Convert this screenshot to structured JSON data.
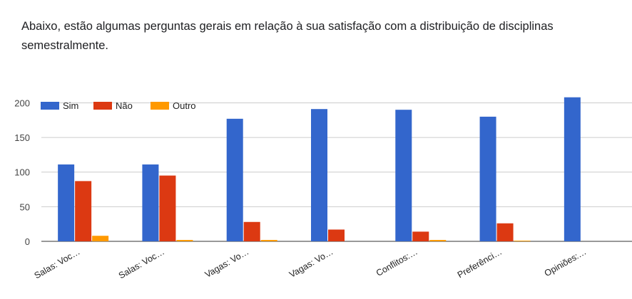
{
  "question": {
    "text": "Abaixo, estão algumas perguntas gerais em relação à sua satisfação com a distribuição de disciplinas semestralmente."
  },
  "chart_data": {
    "type": "bar",
    "title": "",
    "xlabel": "",
    "ylabel": "",
    "ylim": [
      0,
      220
    ],
    "yticks": [
      0,
      50,
      100,
      150,
      200
    ],
    "grid": true,
    "legend_position": "top-left",
    "categories": [
      "Salas: Voc…",
      "Salas: Voc…",
      "Vagas: Vo…",
      "Vagas: Vo…",
      "Conflitos:…",
      "Preferênci…",
      "Opiniões:…"
    ],
    "series": [
      {
        "name": "Sim",
        "color": "#3366cc",
        "values": [
          111,
          111,
          177,
          191,
          190,
          180,
          208
        ]
      },
      {
        "name": "Não",
        "color": "#dc3912",
        "values": [
          87,
          95,
          28,
          17,
          14,
          26,
          0
        ]
      },
      {
        "name": "Outro",
        "color": "#ff9900",
        "values": [
          8,
          2,
          2,
          0,
          2,
          1,
          0
        ]
      }
    ]
  }
}
